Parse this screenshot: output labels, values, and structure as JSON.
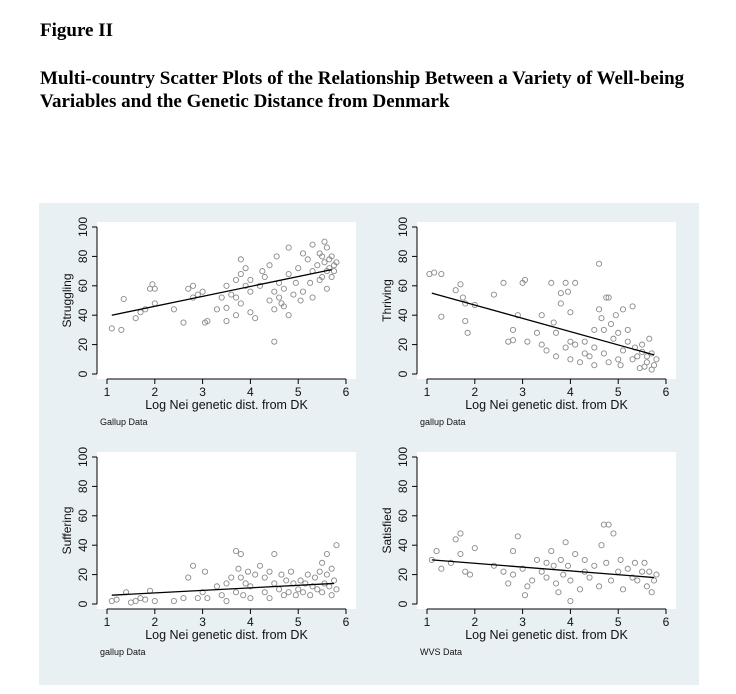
{
  "figure_label": "Figure II",
  "figure_title": "Multi-country Scatter Plots of the Relationship Between a Variety of Well-being Variables and the Genetic Distance from Denmark",
  "colors": {
    "panel_bg": "#e9f0f4",
    "plot_bg": "#ffffff",
    "marker": "#8a8a8a",
    "fit_line": "#000000"
  },
  "chart_data": [
    {
      "type": "scatter",
      "ylabel": "Struggling",
      "xlabel": "Log Nei genetic dist. from DK",
      "source": "Gallup Data",
      "xlim": [
        1,
        6
      ],
      "ylim": [
        0,
        100
      ],
      "xticks": [
        "1",
        "2",
        "3",
        "4",
        "5",
        "6"
      ],
      "yticks": [
        "0",
        "20",
        "40",
        "60",
        "80",
        "100"
      ],
      "fit": [
        [
          1.1,
          40
        ],
        [
          5.7,
          71
        ]
      ],
      "points": [
        [
          1.1,
          31
        ],
        [
          1.3,
          30
        ],
        [
          1.35,
          51
        ],
        [
          1.6,
          38
        ],
        [
          1.7,
          42
        ],
        [
          1.8,
          44
        ],
        [
          1.9,
          58
        ],
        [
          1.95,
          61
        ],
        [
          2.0,
          58
        ],
        [
          2.0,
          48
        ],
        [
          2.4,
          44
        ],
        [
          2.6,
          35
        ],
        [
          2.7,
          58
        ],
        [
          2.8,
          60
        ],
        [
          2.8,
          52
        ],
        [
          2.9,
          54
        ],
        [
          3.0,
          56
        ],
        [
          3.05,
          35
        ],
        [
          3.1,
          36
        ],
        [
          3.3,
          44
        ],
        [
          3.4,
          52
        ],
        [
          3.5,
          60
        ],
        [
          3.5,
          45
        ],
        [
          3.5,
          36
        ],
        [
          3.6,
          54
        ],
        [
          3.7,
          64
        ],
        [
          3.7,
          52
        ],
        [
          3.7,
          40
        ],
        [
          3.8,
          78
        ],
        [
          3.8,
          68
        ],
        [
          3.8,
          48
        ],
        [
          3.9,
          72
        ],
        [
          3.9,
          60
        ],
        [
          4.0,
          56
        ],
        [
          4.0,
          42
        ],
        [
          4.0,
          64
        ],
        [
          4.1,
          38
        ],
        [
          4.2,
          60
        ],
        [
          4.25,
          70
        ],
        [
          4.3,
          66
        ],
        [
          4.4,
          50
        ],
        [
          4.4,
          74
        ],
        [
          4.5,
          56
        ],
        [
          4.5,
          44
        ],
        [
          4.5,
          22
        ],
        [
          4.55,
          80
        ],
        [
          4.6,
          52
        ],
        [
          4.6,
          62
        ],
        [
          4.65,
          48
        ],
        [
          4.7,
          46
        ],
        [
          4.7,
          58
        ],
        [
          4.8,
          86
        ],
        [
          4.8,
          40
        ],
        [
          4.8,
          68
        ],
        [
          4.9,
          54
        ],
        [
          4.95,
          62
        ],
        [
          5.0,
          72
        ],
        [
          5.05,
          50
        ],
        [
          5.1,
          82
        ],
        [
          5.1,
          56
        ],
        [
          5.2,
          78
        ],
        [
          5.25,
          62
        ],
        [
          5.3,
          70
        ],
        [
          5.3,
          88
        ],
        [
          5.3,
          52
        ],
        [
          5.4,
          74
        ],
        [
          5.45,
          82
        ],
        [
          5.45,
          64
        ],
        [
          5.5,
          66
        ],
        [
          5.5,
          80
        ],
        [
          5.55,
          90
        ],
        [
          5.55,
          76
        ],
        [
          5.6,
          70
        ],
        [
          5.6,
          86
        ],
        [
          5.6,
          58
        ],
        [
          5.65,
          78
        ],
        [
          5.65,
          72
        ],
        [
          5.7,
          80
        ],
        [
          5.7,
          66
        ],
        [
          5.75,
          74
        ],
        [
          5.75,
          70
        ],
        [
          5.8,
          76
        ]
      ]
    },
    {
      "type": "scatter",
      "ylabel": "Thriving",
      "xlabel": "Log Nei genetic dist. from DK",
      "source": "gallup Data",
      "xlim": [
        1,
        6
      ],
      "ylim": [
        0,
        100
      ],
      "xticks": [
        "1",
        "2",
        "3",
        "4",
        "5",
        "6"
      ],
      "yticks": [
        "0",
        "20",
        "40",
        "60",
        "80",
        "100"
      ],
      "fit": [
        [
          1.1,
          55
        ],
        [
          5.75,
          13
        ]
      ],
      "points": [
        [
          1.05,
          68
        ],
        [
          1.15,
          69
        ],
        [
          1.3,
          68
        ],
        [
          1.3,
          39
        ],
        [
          1.6,
          57
        ],
        [
          1.7,
          61
        ],
        [
          1.75,
          52
        ],
        [
          1.8,
          48
        ],
        [
          1.8,
          36
        ],
        [
          1.85,
          28
        ],
        [
          2.0,
          47
        ],
        [
          2.4,
          54
        ],
        [
          2.6,
          62
        ],
        [
          2.7,
          22
        ],
        [
          2.8,
          23
        ],
        [
          2.8,
          30
        ],
        [
          2.9,
          40
        ],
        [
          3.0,
          62
        ],
        [
          3.05,
          64
        ],
        [
          3.1,
          22
        ],
        [
          3.3,
          28
        ],
        [
          3.4,
          40
        ],
        [
          3.4,
          20
        ],
        [
          3.5,
          16
        ],
        [
          3.6,
          62
        ],
        [
          3.65,
          35
        ],
        [
          3.7,
          28
        ],
        [
          3.7,
          12
        ],
        [
          3.8,
          48
        ],
        [
          3.8,
          55
        ],
        [
          3.9,
          62
        ],
        [
          3.9,
          18
        ],
        [
          3.95,
          56
        ],
        [
          4.0,
          42
        ],
        [
          4.0,
          22
        ],
        [
          4.0,
          10
        ],
        [
          4.1,
          62
        ],
        [
          4.1,
          20
        ],
        [
          4.2,
          8
        ],
        [
          4.3,
          14
        ],
        [
          4.3,
          22
        ],
        [
          4.4,
          12
        ],
        [
          4.5,
          6
        ],
        [
          4.5,
          18
        ],
        [
          4.5,
          30
        ],
        [
          4.6,
          75
        ],
        [
          4.6,
          44
        ],
        [
          4.65,
          38
        ],
        [
          4.7,
          30
        ],
        [
          4.7,
          14
        ],
        [
          4.75,
          52
        ],
        [
          4.8,
          52
        ],
        [
          4.8,
          8
        ],
        [
          4.85,
          34
        ],
        [
          4.9,
          24
        ],
        [
          4.95,
          40
        ],
        [
          5.0,
          28
        ],
        [
          5.0,
          10
        ],
        [
          5.05,
          6
        ],
        [
          5.1,
          44
        ],
        [
          5.1,
          16
        ],
        [
          5.2,
          30
        ],
        [
          5.2,
          22
        ],
        [
          5.3,
          10
        ],
        [
          5.3,
          46
        ],
        [
          5.35,
          18
        ],
        [
          5.4,
          12
        ],
        [
          5.45,
          4
        ],
        [
          5.5,
          15
        ],
        [
          5.5,
          20
        ],
        [
          5.55,
          5
        ],
        [
          5.6,
          8
        ],
        [
          5.6,
          12
        ],
        [
          5.65,
          24
        ],
        [
          5.7,
          3
        ],
        [
          5.7,
          14
        ],
        [
          5.75,
          6
        ],
        [
          5.8,
          10
        ]
      ]
    },
    {
      "type": "scatter",
      "ylabel": "Suffering",
      "xlabel": "Log Nei genetic dist. from DK",
      "source": "gallup Data",
      "xlim": [
        1,
        6
      ],
      "ylim": [
        0,
        100
      ],
      "xticks": [
        "1",
        "2",
        "3",
        "4",
        "5",
        "6"
      ],
      "yticks": [
        "0",
        "20",
        "40",
        "60",
        "80",
        "100"
      ],
      "fit": [
        [
          1.1,
          6
        ],
        [
          5.75,
          14
        ]
      ],
      "points": [
        [
          1.1,
          2
        ],
        [
          1.2,
          3
        ],
        [
          1.4,
          8
        ],
        [
          1.5,
          1
        ],
        [
          1.6,
          2
        ],
        [
          1.7,
          4
        ],
        [
          1.8,
          3
        ],
        [
          1.9,
          9
        ],
        [
          2.0,
          2
        ],
        [
          2.4,
          2
        ],
        [
          2.6,
          4
        ],
        [
          2.7,
          18
        ],
        [
          2.8,
          26
        ],
        [
          2.9,
          4
        ],
        [
          3.0,
          8
        ],
        [
          3.05,
          22
        ],
        [
          3.1,
          4
        ],
        [
          3.3,
          12
        ],
        [
          3.4,
          6
        ],
        [
          3.5,
          2
        ],
        [
          3.5,
          14
        ],
        [
          3.6,
          18
        ],
        [
          3.7,
          36
        ],
        [
          3.7,
          8
        ],
        [
          3.75,
          24
        ],
        [
          3.8,
          34
        ],
        [
          3.8,
          18
        ],
        [
          3.85,
          6
        ],
        [
          3.9,
          14
        ],
        [
          3.95,
          22
        ],
        [
          4.0,
          4
        ],
        [
          4.0,
          12
        ],
        [
          4.1,
          20
        ],
        [
          4.2,
          26
        ],
        [
          4.3,
          18
        ],
        [
          4.3,
          8
        ],
        [
          4.4,
          22
        ],
        [
          4.4,
          4
        ],
        [
          4.5,
          14
        ],
        [
          4.5,
          34
        ],
        [
          4.6,
          10
        ],
        [
          4.65,
          20
        ],
        [
          4.7,
          6
        ],
        [
          4.75,
          16
        ],
        [
          4.8,
          8
        ],
        [
          4.85,
          22
        ],
        [
          4.9,
          14
        ],
        [
          4.95,
          6
        ],
        [
          5.0,
          10
        ],
        [
          5.05,
          16
        ],
        [
          5.1,
          8
        ],
        [
          5.15,
          14
        ],
        [
          5.2,
          20
        ],
        [
          5.25,
          6
        ],
        [
          5.3,
          12
        ],
        [
          5.35,
          18
        ],
        [
          5.4,
          10
        ],
        [
          5.45,
          22
        ],
        [
          5.5,
          8
        ],
        [
          5.5,
          28
        ],
        [
          5.55,
          14
        ],
        [
          5.6,
          34
        ],
        [
          5.6,
          20
        ],
        [
          5.65,
          12
        ],
        [
          5.7,
          6
        ],
        [
          5.7,
          24
        ],
        [
          5.75,
          16
        ],
        [
          5.8,
          40
        ],
        [
          5.8,
          10
        ]
      ]
    },
    {
      "type": "scatter",
      "ylabel": "Satisfied",
      "xlabel": "Log Nei genetic dist. from DK",
      "source": "WVS Data",
      "xlim": [
        1,
        6
      ],
      "ylim": [
        0,
        100
      ],
      "xticks": [
        "1",
        "2",
        "3",
        "4",
        "5",
        "6"
      ],
      "yticks": [
        "0",
        "20",
        "40",
        "60",
        "80",
        "100"
      ],
      "fit": [
        [
          1.1,
          30
        ],
        [
          5.75,
          18
        ]
      ],
      "points": [
        [
          1.1,
          30
        ],
        [
          1.2,
          36
        ],
        [
          1.3,
          24
        ],
        [
          1.5,
          28
        ],
        [
          1.6,
          44
        ],
        [
          1.7,
          48
        ],
        [
          1.7,
          34
        ],
        [
          1.8,
          22
        ],
        [
          1.9,
          20
        ],
        [
          2.0,
          38
        ],
        [
          2.4,
          26
        ],
        [
          2.6,
          22
        ],
        [
          2.7,
          14
        ],
        [
          2.8,
          20
        ],
        [
          2.8,
          36
        ],
        [
          2.9,
          46
        ],
        [
          3.0,
          24
        ],
        [
          3.05,
          6
        ],
        [
          3.1,
          12
        ],
        [
          3.2,
          16
        ],
        [
          3.3,
          30
        ],
        [
          3.4,
          22
        ],
        [
          3.5,
          28
        ],
        [
          3.5,
          18
        ],
        [
          3.6,
          36
        ],
        [
          3.65,
          26
        ],
        [
          3.7,
          14
        ],
        [
          3.75,
          8
        ],
        [
          3.8,
          30
        ],
        [
          3.85,
          20
        ],
        [
          3.9,
          42
        ],
        [
          3.95,
          26
        ],
        [
          4.0,
          2
        ],
        [
          4.0,
          16
        ],
        [
          4.1,
          34
        ],
        [
          4.2,
          10
        ],
        [
          4.3,
          22
        ],
        [
          4.3,
          30
        ],
        [
          4.4,
          18
        ],
        [
          4.5,
          26
        ],
        [
          4.6,
          12
        ],
        [
          4.65,
          40
        ],
        [
          4.7,
          54
        ],
        [
          4.75,
          28
        ],
        [
          4.8,
          54
        ],
        [
          4.85,
          16
        ],
        [
          4.9,
          48
        ],
        [
          5.0,
          22
        ],
        [
          5.05,
          30
        ],
        [
          5.1,
          10
        ],
        [
          5.2,
          24
        ],
        [
          5.3,
          18
        ],
        [
          5.35,
          28
        ],
        [
          5.4,
          16
        ],
        [
          5.5,
          22
        ],
        [
          5.55,
          28
        ],
        [
          5.6,
          12
        ],
        [
          5.65,
          22
        ],
        [
          5.7,
          8
        ],
        [
          5.75,
          16
        ],
        [
          5.8,
          20
        ]
      ]
    }
  ]
}
